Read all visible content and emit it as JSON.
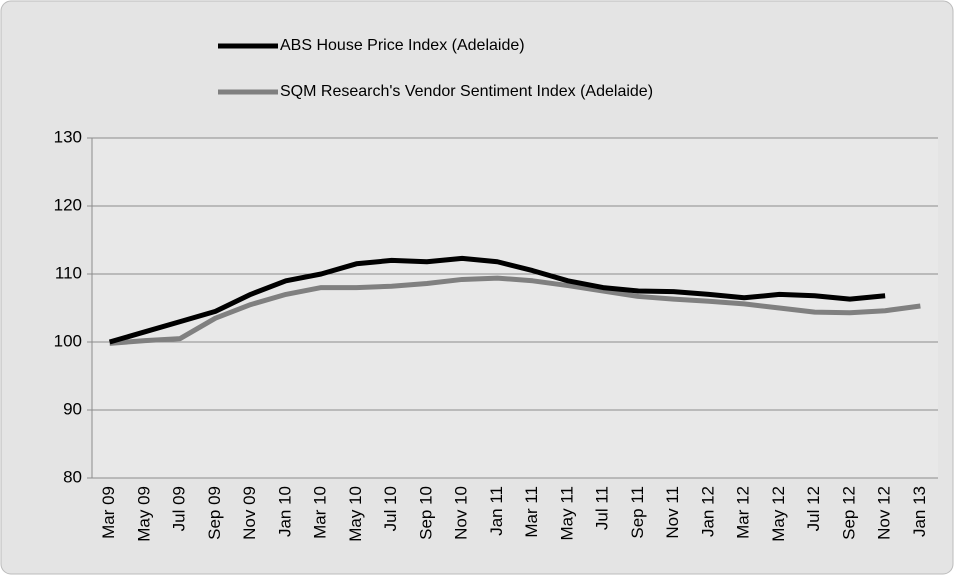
{
  "chart_data": {
    "type": "line",
    "categories": [
      "Mar 09",
      "May 09",
      "Jul 09",
      "Sep 09",
      "Nov 09",
      "Jan 10",
      "Mar 10",
      "May 10",
      "Jul 10",
      "Sep 10",
      "Nov 10",
      "Jan 11",
      "Mar 11",
      "May 11",
      "Jul 11",
      "Sep 11",
      "Nov 11",
      "Jan 12",
      "Mar 12",
      "May 12",
      "Jul 12",
      "Sep 12",
      "Nov 12",
      "Jan 13"
    ],
    "series": [
      {
        "name": "ABS House Price Index (Adelaide)",
        "color": "#000000",
        "values": [
          100,
          101.5,
          103,
          104.5,
          107,
          109,
          110,
          111.5,
          112,
          111.8,
          112.3,
          111.8,
          110.5,
          109,
          108,
          107.5,
          107.4,
          107,
          106.5,
          107,
          106.8,
          106.3,
          106.8,
          null
        ]
      },
      {
        "name": "SQM Research's Vendor Sentiment Index (Adelaide)",
        "color": "#808080",
        "values": [
          99.8,
          100.2,
          100.5,
          103.5,
          105.5,
          107,
          108,
          108,
          108.2,
          108.6,
          109.2,
          109.4,
          109,
          108.3,
          107.5,
          106.7,
          106.3,
          106,
          105.6,
          105,
          104.4,
          104.3,
          104.6,
          105.3
        ]
      }
    ],
    "ylim": [
      80,
      130
    ],
    "yticks": [
      80,
      90,
      100,
      110,
      120,
      130
    ],
    "grid": true
  }
}
